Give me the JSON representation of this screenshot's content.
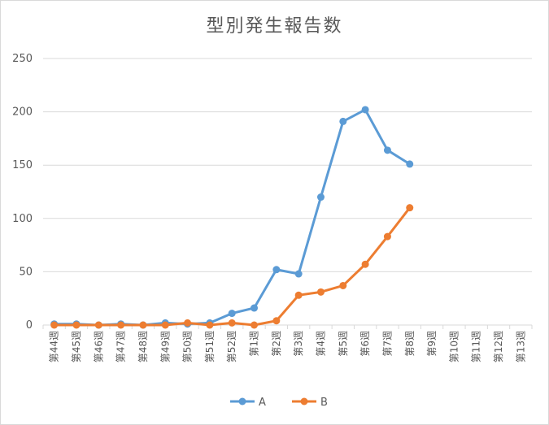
{
  "chart_data": {
    "type": "line",
    "title": "型別発生報告数",
    "categories": [
      "第44週",
      "第45週",
      "第46週",
      "第47週",
      "第48週",
      "第49週",
      "第50週",
      "第51週",
      "第52週",
      "第1週",
      "第2週",
      "第3週",
      "第4週",
      "第5週",
      "第6週",
      "第7週",
      "第8週",
      "第9週",
      "第10週",
      "第11週",
      "第12週",
      "第13週"
    ],
    "series": [
      {
        "name": "A",
        "color": "#5b9bd5",
        "values": [
          1,
          1,
          0,
          1,
          0,
          2,
          1,
          2,
          11,
          16,
          52,
          48,
          120,
          191,
          202,
          164,
          151,
          null,
          null,
          null,
          null,
          null
        ]
      },
      {
        "name": "B",
        "color": "#ed7d31",
        "values": [
          0,
          0,
          0,
          0,
          0,
          0,
          2,
          0,
          2,
          0,
          4,
          28,
          31,
          37,
          57,
          83,
          110,
          null,
          null,
          null,
          null,
          null
        ]
      }
    ],
    "ylim": [
      0,
      250
    ],
    "yticks": [
      0,
      50,
      100,
      150,
      200,
      250
    ],
    "grid": true,
    "legend_position": "bottom"
  }
}
